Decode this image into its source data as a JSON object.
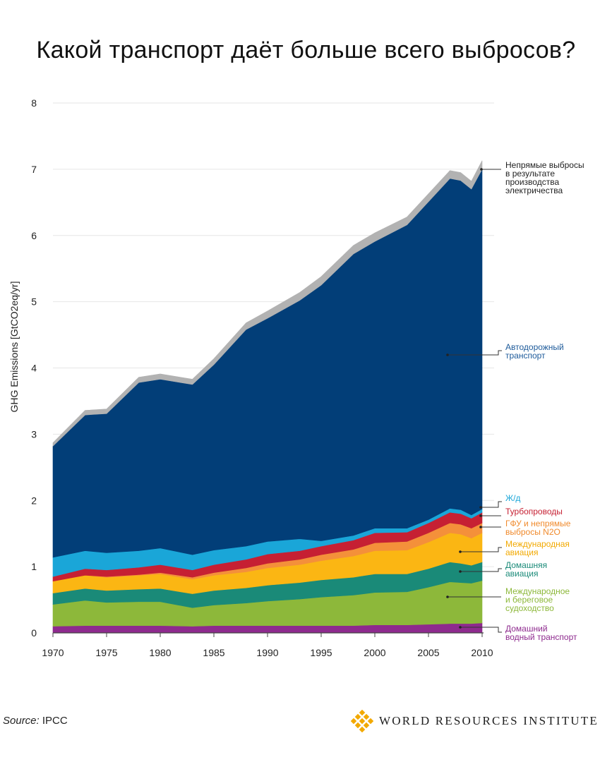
{
  "chart_data": {
    "type": "area",
    "stacked": true,
    "title": "Какой транспорт даёт больше всего выбросов?",
    "ylabel": "GHG Emissions [GtCO2eq/yr]",
    "ylim": [
      0,
      8
    ],
    "xlim": [
      1970,
      2010
    ],
    "grid": true,
    "y_ticks": [
      "0",
      "1",
      "2",
      "3",
      "4",
      "5",
      "6",
      "7",
      "8"
    ],
    "x_ticks": [
      "1970",
      "1975",
      "1980",
      "1985",
      "1990",
      "1995",
      "2000",
      "2005",
      "2010"
    ],
    "x": [
      1970,
      1973,
      1975,
      1978,
      1980,
      1983,
      1985,
      1988,
      1990,
      1993,
      1995,
      1998,
      2000,
      2003,
      2005,
      2007,
      2008,
      2009,
      2010
    ],
    "series": [
      {
        "name": "Домашний водный транспорт",
        "color": "#8e2a8e",
        "values": [
          0.1,
          0.11,
          0.11,
          0.11,
          0.11,
          0.1,
          0.11,
          0.11,
          0.11,
          0.11,
          0.11,
          0.11,
          0.12,
          0.12,
          0.13,
          0.14,
          0.14,
          0.14,
          0.15
        ]
      },
      {
        "name": "Международное и береговое судоходство",
        "color": "#8db83a",
        "values": [
          0.33,
          0.38,
          0.35,
          0.36,
          0.36,
          0.28,
          0.31,
          0.34,
          0.37,
          0.4,
          0.43,
          0.46,
          0.49,
          0.5,
          0.56,
          0.63,
          0.62,
          0.61,
          0.64
        ]
      },
      {
        "name": "Домашняя авиация",
        "color": "#1a8a78",
        "values": [
          0.17,
          0.18,
          0.18,
          0.19,
          0.2,
          0.21,
          0.22,
          0.23,
          0.24,
          0.25,
          0.26,
          0.27,
          0.28,
          0.27,
          0.28,
          0.3,
          0.29,
          0.27,
          0.28
        ]
      },
      {
        "name": "Международная авиация",
        "color": "#fbb613",
        "values": [
          0.18,
          0.2,
          0.2,
          0.21,
          0.22,
          0.22,
          0.23,
          0.24,
          0.26,
          0.27,
          0.29,
          0.32,
          0.35,
          0.36,
          0.4,
          0.44,
          0.44,
          0.41,
          0.44
        ]
      },
      {
        "name": "ГФУ и непрямые выбросы N2O",
        "color": "#f4903a",
        "values": [
          0.0,
          0.0,
          0.01,
          0.01,
          0.02,
          0.03,
          0.04,
          0.06,
          0.07,
          0.08,
          0.09,
          0.1,
          0.12,
          0.13,
          0.14,
          0.15,
          0.15,
          0.15,
          0.15
        ]
      },
      {
        "name": "Турбопроводы",
        "color": "#c62033",
        "values": [
          0.07,
          0.1,
          0.1,
          0.11,
          0.12,
          0.11,
          0.12,
          0.13,
          0.14,
          0.13,
          0.13,
          0.14,
          0.15,
          0.14,
          0.15,
          0.16,
          0.16,
          0.15,
          0.16
        ]
      },
      {
        "name": "Ж/д",
        "color": "#1aa6d8",
        "values": [
          0.29,
          0.27,
          0.26,
          0.25,
          0.25,
          0.23,
          0.22,
          0.2,
          0.19,
          0.18,
          0.08,
          0.07,
          0.07,
          0.06,
          0.05,
          0.06,
          0.06,
          0.05,
          0.05
        ]
      },
      {
        "name": "Автодорожный транспорт",
        "color": "#023e78",
        "values": [
          1.68,
          2.05,
          2.1,
          2.54,
          2.55,
          2.57,
          2.8,
          3.27,
          3.37,
          3.6,
          3.86,
          4.25,
          4.33,
          4.58,
          4.8,
          4.98,
          4.97,
          4.92,
          5.13
        ]
      },
      {
        "name": "Непрямые выбросы в результате производства электричества",
        "color": "#b2b2b2",
        "values": [
          0.05,
          0.07,
          0.07,
          0.08,
          0.08,
          0.08,
          0.09,
          0.1,
          0.11,
          0.12,
          0.13,
          0.13,
          0.13,
          0.12,
          0.12,
          0.12,
          0.12,
          0.12,
          0.13
        ]
      }
    ],
    "annotations": [
      {
        "series": "Непрямые выбросы в результате производства электричества",
        "lines": [
          "Непрямые выбросы",
          "в результате",
          "производства",
          "электричества"
        ],
        "color": "#222222"
      },
      {
        "series": "Автодорожный транспорт",
        "lines": [
          "Автодорожный",
          "транспорт"
        ],
        "color": "#1d5a9a"
      },
      {
        "series": "Ж/д",
        "lines": [
          "Ж/д"
        ],
        "color": "#1aa6d8"
      },
      {
        "series": "Турбопроводы",
        "lines": [
          "Турбопроводы"
        ],
        "color": "#c62033"
      },
      {
        "series": "ГФУ и непрямые выбросы N2O",
        "lines": [
          "ГФУ и непрямые",
          "выбросы N2O"
        ],
        "color": "#f08a2c"
      },
      {
        "series": "Международная авиация",
        "lines": [
          "Международная",
          "авиация"
        ],
        "color": "#f2a900"
      },
      {
        "series": "Домашняя авиация",
        "lines": [
          "Домашняя",
          "авиация"
        ],
        "color": "#1a8a78"
      },
      {
        "series": "Международное и береговое судоходство",
        "lines": [
          "Международное",
          "и береговое",
          "судоходство"
        ],
        "color": "#8db83a"
      },
      {
        "series": "Домашний водный транспорт",
        "lines": [
          "Домашний",
          "водный транспорт"
        ],
        "color": "#8e2a8e"
      }
    ]
  },
  "footer": {
    "source_label": "Source:",
    "source_value": "IPCC",
    "logo_text": "WORLD RESOURCES INSTITUTE"
  }
}
